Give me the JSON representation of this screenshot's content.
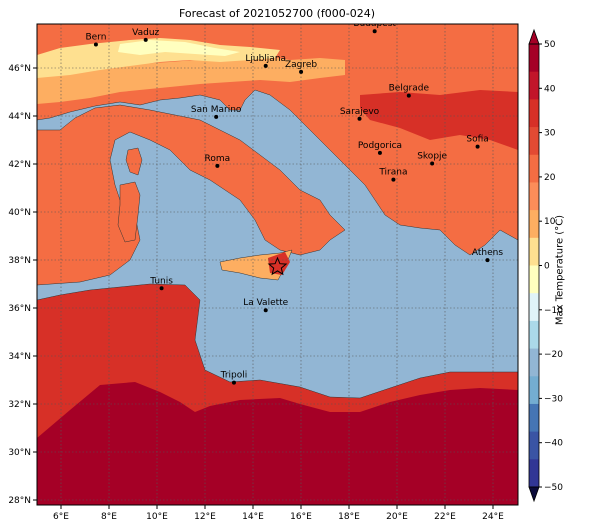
{
  "title": "Forecast of 2021052700 (f000-024)",
  "colorbar": {
    "label": "Max Temperature (°C)",
    "ticks": [
      "50",
      "40",
      "30",
      "20",
      "10",
      "0",
      "−10",
      "−20",
      "−30",
      "−40",
      "−50"
    ],
    "colors": [
      "#a50026",
      "#c2152a",
      "#d73027",
      "#e34a33",
      "#f46d43",
      "#fc8d59",
      "#fdae61",
      "#fee090",
      "#ffffbf",
      "#e0f3f8",
      "#abd9e9",
      "#92b6d4",
      "#74add1",
      "#4575b4",
      "#3a54a4",
      "#313695"
    ],
    "sea_color": "#92b6d4"
  },
  "axes": {
    "x_ticks": [
      "6°E",
      "8°E",
      "10°E",
      "12°E",
      "14°E",
      "16°E",
      "18°E",
      "20°E",
      "22°E",
      "24°E"
    ],
    "y_ticks": [
      "46°N",
      "44°N",
      "42°N",
      "40°N",
      "38°N",
      "36°N",
      "34°N",
      "32°N",
      "30°N",
      "28°N"
    ]
  },
  "cities": [
    {
      "name": "Bern",
      "lon": 7.45,
      "lat": 46.95
    },
    {
      "name": "Vaduz",
      "lon": 9.52,
      "lat": 47.14
    },
    {
      "name": "Budapest",
      "lon": 19.04,
      "lat": 47.5
    },
    {
      "name": "Ljubljana",
      "lon": 14.51,
      "lat": 46.06
    },
    {
      "name": "Zagreb",
      "lon": 15.98,
      "lat": 45.81
    },
    {
      "name": "Belgrade",
      "lon": 20.46,
      "lat": 44.82
    },
    {
      "name": "San Marino",
      "lon": 12.45,
      "lat": 43.94
    },
    {
      "name": "Sarajevo",
      "lon": 18.41,
      "lat": 43.86
    },
    {
      "name": "Sofia",
      "lon": 23.32,
      "lat": 42.7
    },
    {
      "name": "Podgorica",
      "lon": 19.26,
      "lat": 42.44
    },
    {
      "name": "Skopje",
      "lon": 21.43,
      "lat": 42.0
    },
    {
      "name": "Roma",
      "lon": 12.5,
      "lat": 41.9
    },
    {
      "name": "Tirana",
      "lon": 19.82,
      "lat": 41.33
    },
    {
      "name": "Athens",
      "lon": 23.73,
      "lat": 37.98
    },
    {
      "name": "Tunis",
      "lon": 10.18,
      "lat": 36.81
    },
    {
      "name": "La Valette",
      "lon": 14.51,
      "lat": 35.9
    },
    {
      "name": "Tripoli",
      "lon": 13.19,
      "lat": 32.89
    }
  ],
  "marker": {
    "symbol": "star",
    "lon": 15.0,
    "lat": 37.7
  }
}
